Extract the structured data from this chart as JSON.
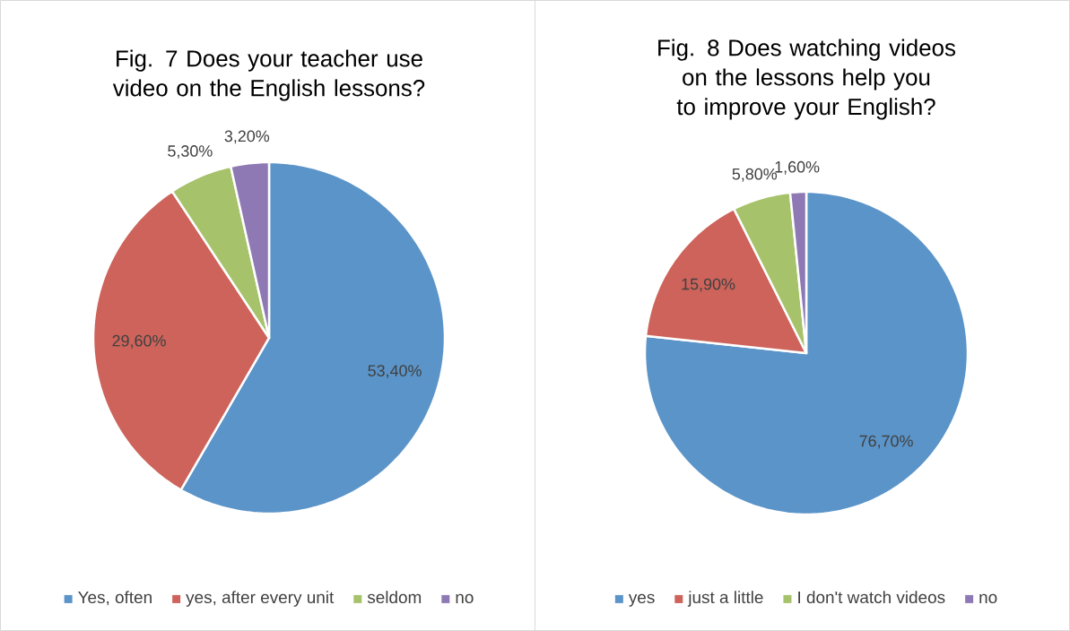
{
  "chart_data": [
    {
      "type": "pie",
      "title": "Fig. 7 Does your teacher use video on the English lessons?",
      "categories": [
        "Yes, often",
        "yes, after every unit",
        "seldom",
        "no"
      ],
      "values": [
        53.4,
        29.6,
        5.3,
        3.2
      ],
      "value_labels": [
        "53,40%",
        "29,60%",
        "5,30%",
        "3,20%"
      ],
      "colors": [
        "#5b94c8",
        "#cd635a",
        "#a6c26a",
        "#8e79b4"
      ],
      "legend": "bottom"
    },
    {
      "type": "pie",
      "title": "Fig. 8 Does watching videos on the lessons help  you to improve your English?",
      "categories": [
        "yes",
        "just a little",
        "I don't watch videos",
        "no"
      ],
      "values": [
        76.7,
        15.9,
        5.8,
        1.6
      ],
      "value_labels": [
        "76,70%",
        "15,90%",
        "5,80%",
        "1,60%"
      ],
      "colors": [
        "#5b94c8",
        "#cd635a",
        "#a6c26a",
        "#8e79b4"
      ],
      "legend": "bottom"
    }
  ]
}
